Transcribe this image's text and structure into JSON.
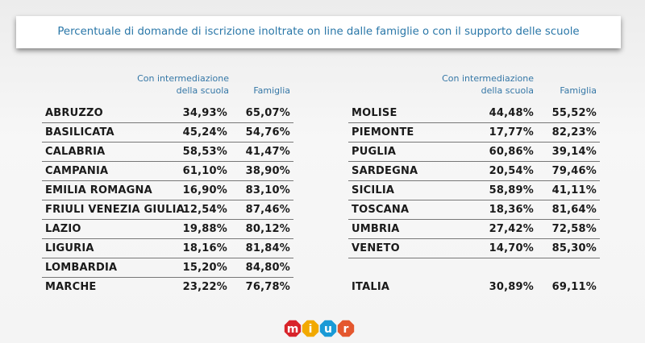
{
  "title": "Percentuale di domande di iscrizione inoltrate on line dalle famiglie o con il supporto delle scuole",
  "headers": {
    "intermediazione_line1": "Con intermediazione",
    "intermediazione_line2": "della scuola",
    "famiglia": "Famiglia"
  },
  "left_rows": [
    {
      "region": "ABRUZZO",
      "scuola": "34,93%",
      "famiglia": "65,07%"
    },
    {
      "region": "BASILICATA",
      "scuola": "45,24%",
      "famiglia": "54,76%"
    },
    {
      "region": "CALABRIA",
      "scuola": "58,53%",
      "famiglia": "41,47%"
    },
    {
      "region": "CAMPANIA",
      "scuola": "61,10%",
      "famiglia": "38,90%"
    },
    {
      "region": "EMILIA ROMAGNA",
      "scuola": "16,90%",
      "famiglia": "83,10%"
    },
    {
      "region": "FRIULI VENEZIA GIULIA",
      "scuola": "12,54%",
      "famiglia": "87,46%"
    },
    {
      "region": "LAZIO",
      "scuola": "19,88%",
      "famiglia": "80,12%"
    },
    {
      "region": "LIGURIA",
      "scuola": "18,16%",
      "famiglia": "81,84%"
    },
    {
      "region": "LOMBARDIA",
      "scuola": "15,20%",
      "famiglia": "84,80%"
    },
    {
      "region": "MARCHE",
      "scuola": "23,22%",
      "famiglia": "76,78%"
    }
  ],
  "right_rows": [
    {
      "region": "MOLISE",
      "scuola": "44,48%",
      "famiglia": "55,52%"
    },
    {
      "region": "PIEMONTE",
      "scuola": "17,77%",
      "famiglia": "82,23%"
    },
    {
      "region": "PUGLIA",
      "scuola": "60,86%",
      "famiglia": "39,14%"
    },
    {
      "region": "SARDEGNA",
      "scuola": "20,54%",
      "famiglia": "79,46%"
    },
    {
      "region": "SICILIA",
      "scuola": "58,89%",
      "famiglia": "41,11%"
    },
    {
      "region": "TOSCANA",
      "scuola": "18,36%",
      "famiglia": "81,64%"
    },
    {
      "region": "UMBRIA",
      "scuola": "27,42%",
      "famiglia": "72,58%"
    },
    {
      "region": "VENETO",
      "scuola": "14,70%",
      "famiglia": "85,30%"
    }
  ],
  "total": {
    "region": "ITALIA",
    "scuola": "30,89%",
    "famiglia": "69,11%"
  },
  "logo": {
    "letters": [
      "m",
      "i",
      "u",
      "r"
    ],
    "colors": [
      "#d8232a",
      "#f2a900",
      "#1a9ad6",
      "#e4572e"
    ]
  }
}
